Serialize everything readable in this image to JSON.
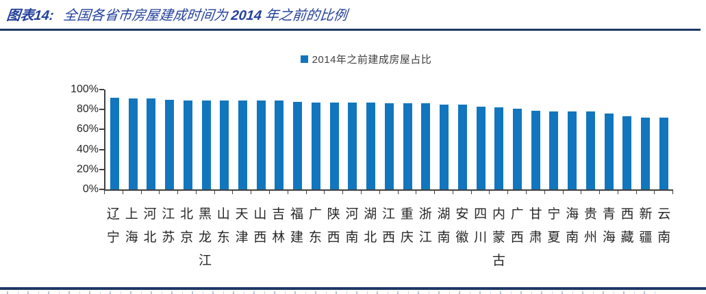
{
  "figure": {
    "title_prefix": "图表14:",
    "title_body": "全国各省市房屋建成时间为",
    "title_year": "2014",
    "title_suffix": "年之前的比例"
  },
  "legend": {
    "label": "2014年之前建成房屋占比"
  },
  "colors": {
    "bar": "#1276BE",
    "title_text": "#24419B",
    "rule": "#1F3864",
    "axis": "#3F3F3F",
    "label_text": "#262626"
  },
  "chart_data": {
    "type": "bar",
    "title": "2014年之前建成房屋占比",
    "categories": [
      "辽宁",
      "上海",
      "河北",
      "江苏",
      "北京",
      "黑龙江",
      "山东",
      "天津",
      "山西",
      "吉林",
      "福建",
      "广东",
      "陕西",
      "河南",
      "湖北",
      "江西",
      "重庆",
      "浙江",
      "湖南",
      "安徽",
      "四川",
      "内蒙古",
      "广西",
      "甘肃",
      "宁夏",
      "海南",
      "贵州",
      "青海",
      "西藏",
      "新疆",
      "云南"
    ],
    "values": [
      92,
      91,
      91,
      90,
      89,
      89,
      89,
      89,
      89,
      89,
      88,
      87,
      87,
      87,
      87,
      86,
      86,
      86,
      85,
      85,
      83,
      82,
      81,
      79,
      78,
      78,
      78,
      76,
      73,
      72,
      72
    ],
    "unit": "%",
    "ylim": [
      0,
      100
    ],
    "yticks": [
      "100%",
      "80%",
      "60%",
      "40%",
      "20%",
      "0%"
    ],
    "grid": false,
    "legend_position": "top",
    "x_label_orientation": "vertical-stacked"
  }
}
